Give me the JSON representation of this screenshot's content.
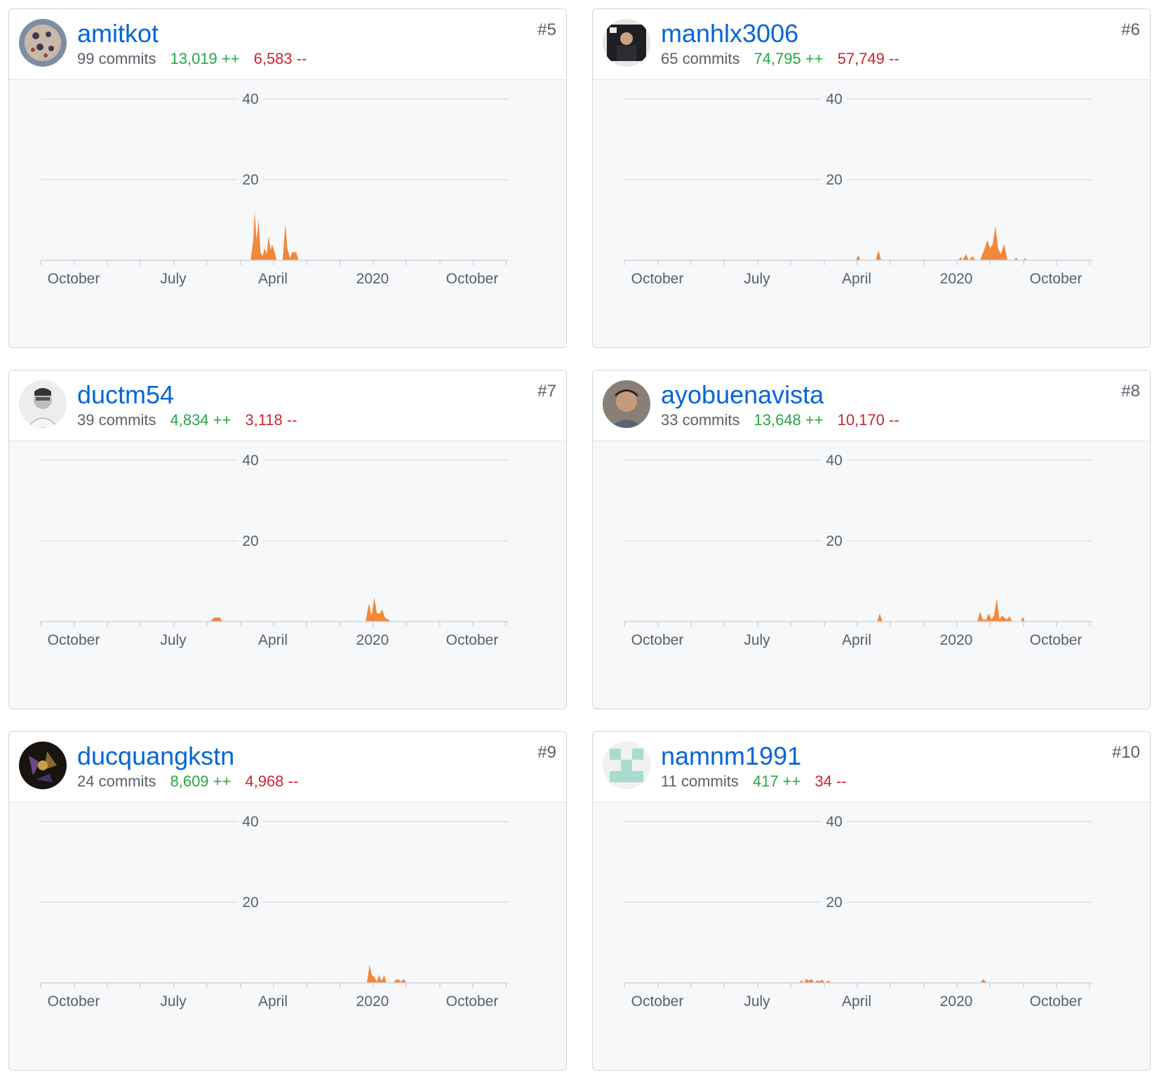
{
  "colors": {
    "link": "#0366d6",
    "additions": "#28a745",
    "deletions": "#cb2431",
    "area_fill": "#f1883b",
    "grid": "#dfe2e5",
    "chart_bg": "#f6f8fa"
  },
  "x_axis_labels": [
    "October",
    "July",
    "April",
    "2020",
    "October"
  ],
  "y_axis_labels": [
    "40",
    "20"
  ],
  "contributors": [
    {
      "username": "amitkot",
      "commits": "99 commits",
      "additions": "13,019 ++",
      "deletions": "6,583 --",
      "rank": "#5",
      "avatar_icon": "avatar-icon",
      "chart_data": {
        "type": "area",
        "ylim": [
          0,
          40
        ],
        "y_ticks": [
          20,
          40
        ],
        "x_tick_labels": [
          "October",
          "July",
          "April",
          "2020",
          "October"
        ],
        "points": [
          [
            31.4,
            0
          ],
          [
            31.8,
            5
          ],
          [
            32.0,
            12
          ],
          [
            32.3,
            5
          ],
          [
            32.6,
            10
          ],
          [
            32.9,
            2
          ],
          [
            33.2,
            1
          ],
          [
            33.5,
            3
          ],
          [
            33.8,
            1.5
          ],
          [
            34.1,
            6
          ],
          [
            34.4,
            2.5
          ],
          [
            34.6,
            4
          ],
          [
            35.0,
            2
          ],
          [
            35.3,
            0
          ],
          [
            36.2,
            0
          ],
          [
            36.6,
            9
          ],
          [
            36.9,
            3
          ],
          [
            37.3,
            0.5
          ],
          [
            37.6,
            2
          ],
          [
            38.2,
            2
          ],
          [
            38.6,
            0
          ]
        ]
      }
    },
    {
      "username": "manhlx3006",
      "commits": "65 commits",
      "additions": "74,795 ++",
      "deletions": "57,749 --",
      "rank": "#6",
      "avatar_icon": "avatar-icon",
      "chart_data": {
        "type": "area",
        "ylim": [
          0,
          40
        ],
        "y_ticks": [
          20,
          40
        ],
        "x_tick_labels": [
          "October",
          "July",
          "April",
          "2020",
          "October"
        ],
        "points": [
          [
            34.6,
            0
          ],
          [
            35.0,
            1.2
          ],
          [
            35.3,
            0
          ],
          [
            37.6,
            0
          ],
          [
            38.0,
            2.5
          ],
          [
            38.4,
            0
          ],
          [
            50.0,
            0
          ],
          [
            50.3,
            0.8
          ],
          [
            50.6,
            0
          ],
          [
            51.1,
            1.5
          ],
          [
            51.5,
            0
          ],
          [
            52.1,
            1
          ],
          [
            52.5,
            0
          ],
          [
            53.2,
            0
          ],
          [
            53.8,
            2.5
          ],
          [
            54.3,
            5
          ],
          [
            54.7,
            3
          ],
          [
            55.1,
            4
          ],
          [
            55.5,
            8.5
          ],
          [
            55.9,
            3
          ],
          [
            56.3,
            1.5
          ],
          [
            56.8,
            4
          ],
          [
            57.3,
            0
          ],
          [
            58.3,
            0
          ],
          [
            58.6,
            0.7
          ],
          [
            58.9,
            0
          ],
          [
            59.6,
            0
          ],
          [
            59.9,
            0.5
          ],
          [
            60.3,
            0
          ]
        ]
      }
    },
    {
      "username": "ductm54",
      "commits": "39 commits",
      "additions": "4,834 ++",
      "deletions": "3,118 --",
      "rank": "#7",
      "avatar_icon": "avatar-icon",
      "chart_data": {
        "type": "area",
        "ylim": [
          0,
          40
        ],
        "y_ticks": [
          20,
          40
        ],
        "x_tick_labels": [
          "October",
          "July",
          "April",
          "2020",
          "October"
        ],
        "points": [
          [
            25.3,
            0
          ],
          [
            26.0,
            1
          ],
          [
            26.8,
            1
          ],
          [
            27.2,
            0
          ],
          [
            48.6,
            0
          ],
          [
            49.1,
            4.5
          ],
          [
            49.5,
            1.5
          ],
          [
            49.9,
            6
          ],
          [
            50.3,
            2
          ],
          [
            50.7,
            2
          ],
          [
            51.1,
            3
          ],
          [
            51.5,
            1
          ],
          [
            52.0,
            0.5
          ],
          [
            52.4,
            0
          ]
        ]
      }
    },
    {
      "username": "ayobuenavista",
      "commits": "33 commits",
      "additions": "13,648 ++",
      "deletions": "10,170 --",
      "rank": "#8",
      "avatar_icon": "avatar-icon",
      "chart_data": {
        "type": "area",
        "ylim": [
          0,
          40
        ],
        "y_ticks": [
          20,
          40
        ],
        "x_tick_labels": [
          "October",
          "July",
          "April",
          "2020",
          "October"
        ],
        "points": [
          [
            37.8,
            0
          ],
          [
            38.2,
            2
          ],
          [
            38.6,
            0
          ],
          [
            52.8,
            0
          ],
          [
            53.2,
            2.5
          ],
          [
            53.6,
            0.5
          ],
          [
            54.1,
            0.5
          ],
          [
            54.5,
            2
          ],
          [
            54.9,
            0.5
          ],
          [
            55.3,
            1.5
          ],
          [
            55.7,
            5.8
          ],
          [
            56.1,
            0.5
          ],
          [
            56.5,
            1.5
          ],
          [
            57.2,
            0.5
          ],
          [
            57.6,
            1.3
          ],
          [
            58.0,
            0
          ],
          [
            59.3,
            0
          ],
          [
            59.6,
            1.2
          ],
          [
            59.9,
            0
          ]
        ]
      }
    },
    {
      "username": "ducquangkstn",
      "commits": "24 commits",
      "additions": "8,609 ++",
      "deletions": "4,968 --",
      "rank": "#9",
      "avatar_icon": "avatar-icon",
      "chart_data": {
        "type": "area",
        "ylim": [
          0,
          40
        ],
        "y_ticks": [
          20,
          40
        ],
        "x_tick_labels": [
          "October",
          "July",
          "April",
          "2020",
          "October"
        ],
        "points": [
          [
            48.8,
            0
          ],
          [
            49.2,
            4.5
          ],
          [
            49.5,
            2
          ],
          [
            49.9,
            1.5
          ],
          [
            50.3,
            0.3
          ],
          [
            50.6,
            2
          ],
          [
            51.0,
            0.5
          ],
          [
            51.4,
            2
          ],
          [
            51.7,
            0
          ],
          [
            52.8,
            0
          ],
          [
            53.1,
            0.8
          ],
          [
            53.6,
            0.8
          ],
          [
            53.9,
            0.3
          ],
          [
            54.3,
            1
          ],
          [
            54.7,
            0
          ]
        ]
      }
    },
    {
      "username": "namnm1991",
      "commits": "11 commits",
      "additions": "417 ++",
      "deletions": "34 --",
      "rank": "#10",
      "avatar_icon": "avatar-icon",
      "chart_data": {
        "type": "area",
        "ylim": [
          0,
          40
        ],
        "y_ticks": [
          20,
          40
        ],
        "x_tick_labels": [
          "October",
          "July",
          "April",
          "2020",
          "October"
        ],
        "points": [
          [
            26.0,
            0
          ],
          [
            26.5,
            0.6
          ],
          [
            26.9,
            0
          ],
          [
            27.2,
            1
          ],
          [
            27.6,
            0.5
          ],
          [
            28.0,
            1
          ],
          [
            28.4,
            0
          ],
          [
            28.8,
            0.6
          ],
          [
            29.2,
            0.4
          ],
          [
            29.6,
            0.8
          ],
          [
            30.0,
            0
          ],
          [
            30.5,
            0.6
          ],
          [
            30.9,
            0
          ],
          [
            53.2,
            0
          ],
          [
            53.7,
            0.9
          ],
          [
            54.2,
            0
          ]
        ]
      }
    }
  ]
}
